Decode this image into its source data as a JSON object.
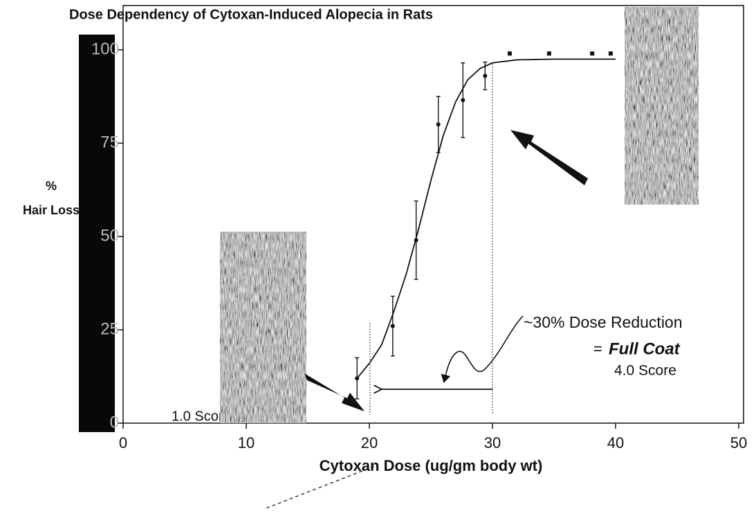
{
  "chart_data": {
    "type": "scatter",
    "title": "Dose Dependency of Cytoxan-Induced Alopecia in Rats",
    "xlabel": "Cytoxan Dose (ug/gm body wt)",
    "ylabel": [
      "%",
      "Hair Loss"
    ],
    "annotations": [
      "~30% Dose Reduction",
      "=",
      "Full Coat",
      "4.0 Score",
      "1.0 Score"
    ],
    "xlim": [
      0,
      50
    ],
    "ylim": [
      0,
      100
    ],
    "xticks": [
      0,
      10,
      20,
      30,
      40,
      50
    ],
    "yticks": [
      0,
      25,
      50,
      75,
      100
    ],
    "series": [
      {
        "x": [
          19,
          21.9,
          23.8,
          25.6,
          27.6,
          29.4
        ],
        "values": [
          12,
          26,
          49,
          80,
          86.5,
          93
        ],
        "errors": [
          5.5,
          8,
          10.5,
          7.5,
          10,
          3.7
        ],
        "color": "#111111",
        "marker": "circle"
      },
      {
        "x": [
          31.4,
          34.6,
          38.1,
          39.6
        ],
        "values": [
          99,
          99,
          99,
          99
        ],
        "color": "#111111",
        "marker": "square"
      },
      {
        "x": [
          19,
          20,
          21,
          22,
          23,
          24,
          25,
          26,
          27,
          28,
          29,
          30,
          32,
          35,
          40
        ],
        "values": [
          12,
          16,
          21,
          30,
          40,
          52,
          65,
          77,
          86,
          92,
          95,
          96.5,
          97.3,
          97.5,
          97.5
        ],
        "color": "#111111",
        "marker": "line"
      }
    ]
  }
}
